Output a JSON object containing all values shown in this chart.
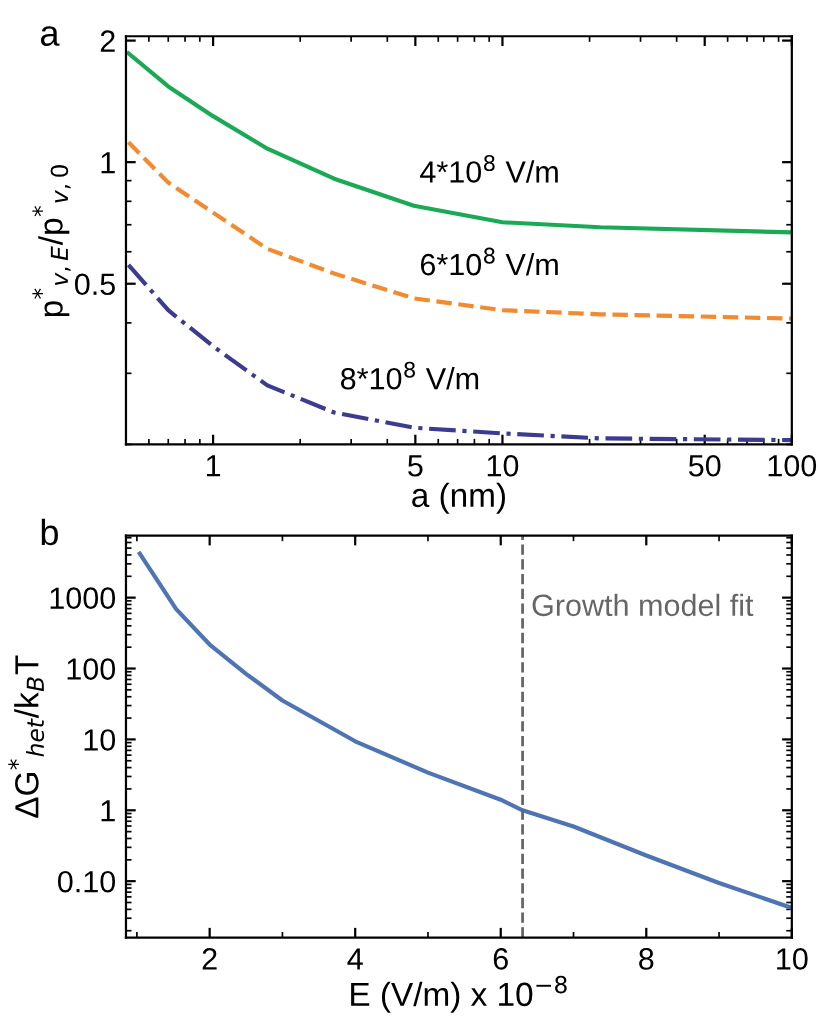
{
  "chart_data": [
    {
      "type": "line",
      "annotations": [
        "a"
      ],
      "xlabel": "a (nm)",
      "ylabel": "p$^{*}$$_{v,E}$/p$^{*}$$_{v,0}$",
      "log": "xy",
      "xlim": [
        0.5,
        100
      ],
      "ylim": [
        0.2,
        2.05
      ],
      "xticks": [
        1,
        5,
        10,
        50,
        100
      ],
      "yticks": [
        0.5,
        1,
        2
      ],
      "grid": false,
      "legend": false,
      "series": [
        {
          "name": "4*10$^{8}$ V/m",
          "color": "#1aaa55",
          "line_style": "solid",
          "x": [
            0.51,
            0.7,
            1,
            1.54,
            2.62,
            4.94,
            10,
            21.8,
            100
          ],
          "values": [
            1.86,
            1.54,
            1.3,
            1.08,
            0.91,
            0.78,
            0.71,
            0.69,
            0.67
          ]
        },
        {
          "name": "6*10$^{8}$ V/m",
          "color": "#f28a30",
          "line_style": "dashed",
          "x": [
            0.51,
            0.7,
            1,
            1.54,
            2.62,
            4.94,
            10,
            21.8,
            100
          ],
          "values": [
            1.12,
            0.89,
            0.75,
            0.61,
            0.53,
            0.46,
            0.43,
            0.42,
            0.41
          ]
        },
        {
          "name": "8*10$^{8}$ V/m",
          "color": "#3b3b8f",
          "line_style": "dashdot",
          "x": [
            0.51,
            0.7,
            1,
            1.54,
            2.62,
            4.94,
            10,
            21.8,
            100
          ],
          "values": [
            0.557,
            0.43,
            0.35,
            0.28,
            0.24,
            0.22,
            0.213,
            0.207,
            0.205
          ]
        }
      ]
    },
    {
      "type": "line",
      "annotations": [
        "b"
      ],
      "xlabel": "E (V/m) x 10$^{−8}$",
      "ylabel": "ΔG$^{*}$$_{het}$/k$_{B}$T",
      "log": "y",
      "xlim": [
        0.85,
        10
      ],
      "ylim": [
        0.016,
        7500
      ],
      "xticks": [
        2,
        4,
        6,
        8,
        10
      ],
      "yticks": [
        {
          "value": 0.1,
          "label": "0.10"
        },
        1,
        10,
        100,
        1000
      ],
      "grid": false,
      "legend": false,
      "ref_lines": [
        {
          "axis": "x",
          "value": 6.3,
          "label": "Growth model fit",
          "color": "#666666",
          "line_style": "dashed"
        }
      ],
      "series": [
        {
          "color": "#4f74b3",
          "x": [
            1.04,
            1.54,
            2,
            2.5,
            3,
            4,
            5,
            6,
            6.3,
            7,
            8,
            9,
            10
          ],
          "values": [
            4170,
            690,
            218,
            84,
            35.4,
            9.4,
            3.4,
            1.41,
            1,
            0.59,
            0.23,
            0.094,
            0.042
          ]
        }
      ]
    }
  ]
}
